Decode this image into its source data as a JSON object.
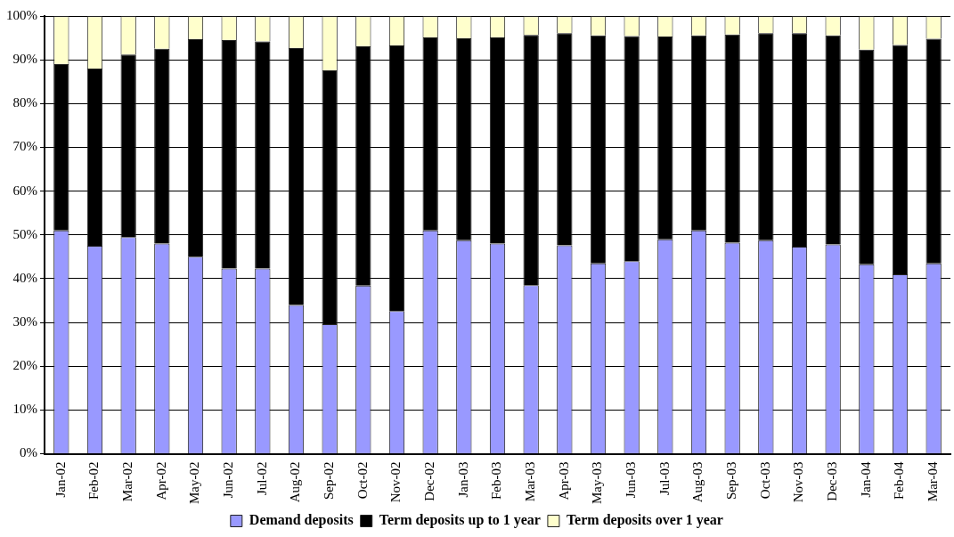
{
  "chart_data": {
    "type": "bar",
    "stacked": true,
    "categories": [
      "Jan-02",
      "Feb-02",
      "Mar-02",
      "Apr-02",
      "May-02",
      "Jun-02",
      "Jul-02",
      "Aug-02",
      "Sep-02",
      "Oct-02",
      "Nov-02",
      "Dec-02",
      "Jan-03",
      "Feb-03",
      "Mar-03",
      "Apr-03",
      "May-03",
      "Jun-03",
      "Jul-03",
      "Aug-03",
      "Sep-03",
      "Oct-03",
      "Nov-03",
      "Dec-03",
      "Jan-04",
      "Feb-04",
      "Mar-04"
    ],
    "series": [
      {
        "name": "Demand deposits",
        "color": "#9999ff",
        "values": [
          51,
          47.5,
          49.5,
          48,
          45,
          42.3,
          42.3,
          34,
          29.6,
          38.4,
          32.6,
          51,
          48.8,
          48,
          38.5,
          47.6,
          43.5,
          44,
          49,
          51,
          48.2,
          48.8,
          47.3,
          47.8,
          43.3,
          41,
          43.5
        ]
      },
      {
        "name": "Term deposits up to 1 year",
        "color": "#000000",
        "values": [
          38,
          40.5,
          41.7,
          44.5,
          49.7,
          52.2,
          51.9,
          58.7,
          58,
          54.7,
          60.7,
          44.1,
          46.1,
          47.1,
          57.2,
          48.5,
          52.1,
          51.4,
          46.3,
          44.6,
          47.6,
          47.3,
          48.8,
          47.8,
          49,
          52.4,
          51.3
        ]
      },
      {
        "name": "Term deposits over 1 year",
        "color": "#ffffcc",
        "values": [
          11,
          12,
          8.8,
          7.5,
          5.3,
          5.5,
          5.8,
          7.3,
          12.4,
          6.9,
          6.7,
          4.9,
          5.1,
          4.9,
          4.3,
          3.9,
          4.4,
          4.6,
          4.7,
          4.4,
          4.2,
          3.9,
          3.9,
          4.4,
          7.7,
          6.6,
          5.2
        ]
      }
    ],
    "ylim": [
      0,
      100
    ],
    "yticks": [
      {
        "value": 0,
        "label": "0%"
      },
      {
        "value": 10,
        "label": "10%"
      },
      {
        "value": 20,
        "label": "20%"
      },
      {
        "value": 30,
        "label": "30%"
      },
      {
        "value": 40,
        "label": "40%"
      },
      {
        "value": 50,
        "label": "50%"
      },
      {
        "value": 60,
        "label": "60%"
      },
      {
        "value": 70,
        "label": "70%"
      },
      {
        "value": 80,
        "label": "80%"
      },
      {
        "value": 90,
        "label": "90%"
      },
      {
        "value": 100,
        "label": "100%"
      }
    ],
    "grid": "y",
    "legend": "bottom"
  }
}
